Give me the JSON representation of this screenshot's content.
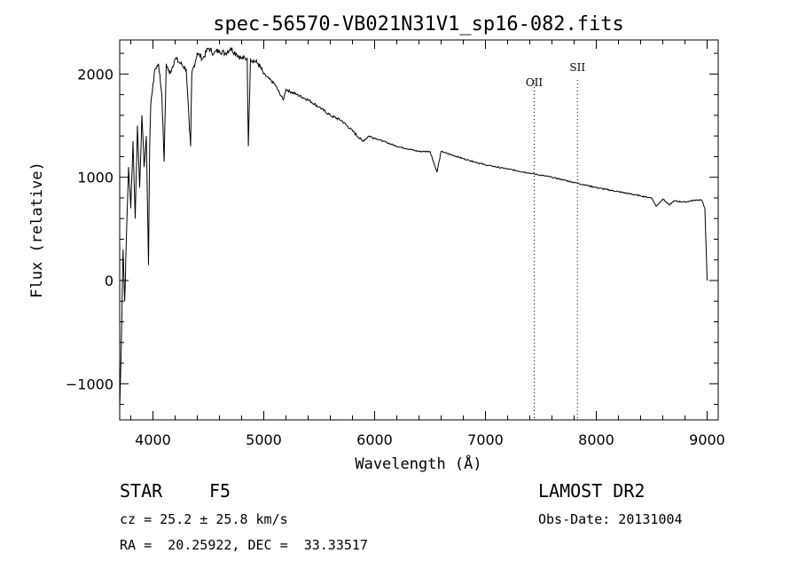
{
  "chart_data": {
    "type": "line",
    "title": "spec-56570-VB021N31V1_sp16-082.fits",
    "xlabel": "Wavelength (Å)",
    "ylabel": "Flux (relative)",
    "xlim": [
      3700,
      9100
    ],
    "ylim": [
      -1350,
      2330
    ],
    "xticks": [
      4000,
      5000,
      6000,
      7000,
      8000,
      9000
    ],
    "xtick_labels": [
      "4000",
      "5000",
      "6000",
      "7000",
      "8000",
      "9000"
    ],
    "yticks": [
      -1000,
      0,
      1000,
      2000
    ],
    "ytick_labels": [
      "−1000",
      "0",
      "1000",
      "2000"
    ],
    "grid": false,
    "series": [
      {
        "x": [
          3700,
          3715,
          3730,
          3745,
          3760,
          3780,
          3800,
          3820,
          3840,
          3860,
          3880,
          3900,
          3920,
          3940,
          3960,
          3970,
          3980,
          4000,
          4020,
          4050,
          4080,
          4101,
          4120,
          4150,
          4200,
          4250,
          4300,
          4330,
          4340,
          4350,
          4400,
          4450,
          4500,
          4550,
          4600,
          4650,
          4700,
          4750,
          4800,
          4850,
          4861,
          4880,
          4950,
          5000,
          5100,
          5175,
          5200,
          5300,
          5400,
          5500,
          5600,
          5700,
          5800,
          5890,
          5950,
          6000,
          6200,
          6400,
          6500,
          6563,
          6600,
          6800,
          7000,
          7200,
          7400,
          7600,
          7800,
          8000,
          8200,
          8400,
          8500,
          8540,
          8600,
          8660,
          8700,
          8800,
          8900,
          8950,
          8980,
          9000
        ],
        "y": [
          -1250,
          -600,
          300,
          -200,
          400,
          1100,
          700,
          1350,
          600,
          1500,
          900,
          1600,
          1100,
          1400,
          150,
          1300,
          1700,
          1900,
          2050,
          2100,
          1800,
          1150,
          2100,
          2000,
          2150,
          2100,
          2050,
          1450,
          1300,
          2000,
          2200,
          2150,
          2250,
          2200,
          2230,
          2200,
          2250,
          2200,
          2150,
          2150,
          1300,
          2150,
          2100,
          2000,
          1900,
          1750,
          1850,
          1800,
          1750,
          1680,
          1600,
          1550,
          1450,
          1350,
          1400,
          1380,
          1300,
          1250,
          1250,
          1050,
          1250,
          1180,
          1120,
          1080,
          1040,
          1000,
          950,
          900,
          860,
          820,
          800,
          720,
          790,
          730,
          770,
          760,
          780,
          780,
          700,
          0
        ]
      }
    ],
    "vlines": [
      {
        "x": 7440,
        "label": "OII"
      },
      {
        "x": 7830,
        "label": "SII"
      }
    ]
  },
  "info": {
    "object_type": "STAR",
    "subclass": "F5",
    "survey": "LAMOST DR2",
    "cz": "cz = 25.2 ± 25.8 km/s",
    "obs_date": "Obs-Date: 20131004",
    "coords": "RA =  20.25922, DEC =  33.33517"
  }
}
